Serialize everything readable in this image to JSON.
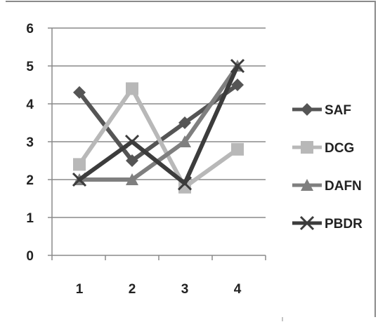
{
  "chart_data": {
    "type": "line",
    "title": "",
    "xlabel": "",
    "ylabel": "",
    "x": [
      1,
      2,
      3,
      4
    ],
    "x_tick_labels": [
      "1",
      "2",
      "3",
      "4"
    ],
    "y_tick_labels": [
      "0",
      "1",
      "2",
      "3",
      "4",
      "5",
      "6"
    ],
    "ylim": [
      0,
      6
    ],
    "grid": true,
    "legend_position": "right",
    "series": [
      {
        "name": "SAF",
        "values": [
          4.3,
          2.5,
          3.5,
          4.5
        ],
        "color": "#555555",
        "marker": "diamond"
      },
      {
        "name": "DCG",
        "values": [
          2.4,
          4.4,
          1.8,
          2.8
        ],
        "color": "#b8b8b8",
        "marker": "square"
      },
      {
        "name": "DAFN",
        "values": [
          2.0,
          2.0,
          3.0,
          5.0
        ],
        "color": "#7f7f7f",
        "marker": "triangle"
      },
      {
        "name": "PBDR",
        "values": [
          2.0,
          3.0,
          1.9,
          5.0
        ],
        "color": "#3c3c3c",
        "marker": "x"
      }
    ]
  }
}
